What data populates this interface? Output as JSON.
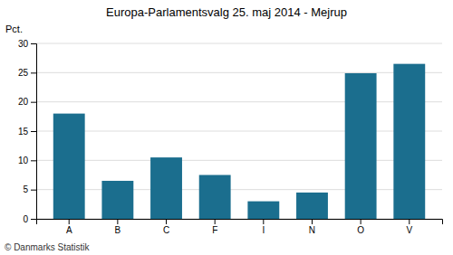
{
  "chart_data": {
    "type": "bar",
    "title": "Europa-Parlamentsvalg 25. maj 2014 - Mejrup",
    "categories": [
      "A",
      "B",
      "C",
      "F",
      "I",
      "N",
      "O",
      "V"
    ],
    "values": [
      18.0,
      6.5,
      10.5,
      7.5,
      3.0,
      4.5,
      24.9,
      26.5
    ],
    "color": "#1B6E8E",
    "ylabel": "Pct.",
    "ylim": [
      0,
      30
    ],
    "yticks": [
      0,
      5,
      10,
      15,
      20,
      25,
      30
    ],
    "grid": true,
    "footer": "© Danmarks Statistik"
  }
}
